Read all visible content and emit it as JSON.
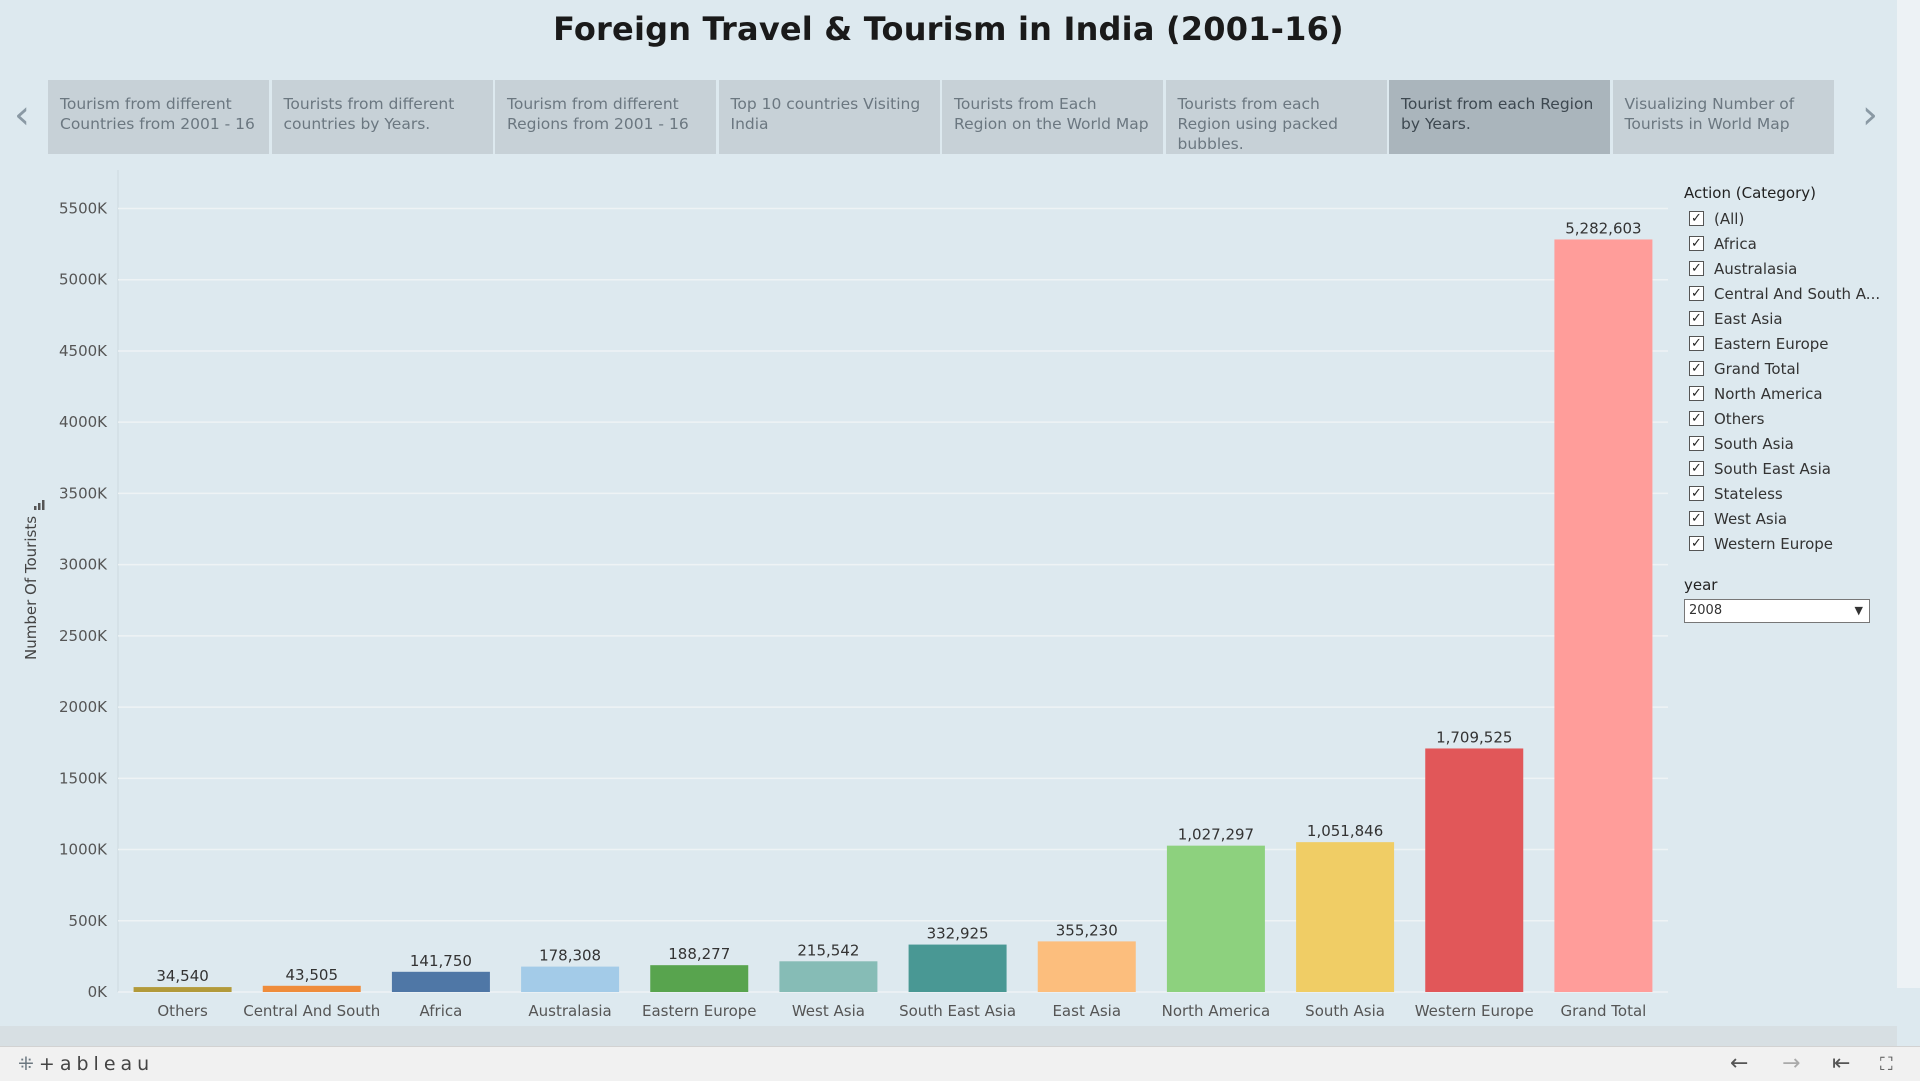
{
  "title": "Foreign Travel & Tourism in India (2001-16)",
  "story_tabs": [
    {
      "label": "Tourism from different Countries from 2001 - 16",
      "active": false
    },
    {
      "label": "Tourists from different countries by Years.",
      "active": false
    },
    {
      "label": "Tourism from different Regions from 2001 - 16",
      "active": false
    },
    {
      "label": "Top 10 countries Visiting India",
      "active": false
    },
    {
      "label": "Tourists from Each Region on the World Map",
      "active": false
    },
    {
      "label": "Tourists from each Region using packed bubbles.",
      "active": false
    },
    {
      "label": "Tourist from each Region by Years.",
      "active": true
    },
    {
      "label": "Visualizing Number of Tourists in World Map",
      "active": false
    }
  ],
  "nav": {
    "prev_icon": "chevron-left-icon",
    "next_icon": "chevron-right-icon"
  },
  "legend": {
    "title": "Action (Category)",
    "items": [
      "(All)",
      "Africa",
      "Australasia",
      "Central And South A...",
      "East Asia",
      "Eastern Europe",
      "Grand Total",
      "North America",
      "Others",
      "South Asia",
      "South East Asia",
      "Stateless",
      "West Asia",
      "Western Europe"
    ],
    "checked": true,
    "check_glyph": "✓"
  },
  "year_filter": {
    "label": "year",
    "value": "2008"
  },
  "footer": {
    "logo": "+ableau"
  },
  "chart_data": {
    "type": "bar",
    "title": "",
    "xlabel": "",
    "ylabel": "Number Of Tourists",
    "ylim": [
      0,
      5700000
    ],
    "yticks": [
      0,
      500000,
      1000000,
      1500000,
      2000000,
      2500000,
      3000000,
      3500000,
      4000000,
      4500000,
      5000000,
      5500000
    ],
    "ytick_labels": [
      "0K",
      "500K",
      "1000K",
      "1500K",
      "2000K",
      "2500K",
      "3000K",
      "3500K",
      "4000K",
      "4500K",
      "5000K",
      "5500K"
    ],
    "grid": true,
    "categories": [
      "Others",
      "Central And South America",
      "Africa",
      "Australasia",
      "Eastern Europe",
      "West Asia",
      "South East Asia",
      "East Asia",
      "North America",
      "South Asia",
      "Western Europe",
      "Grand Total"
    ],
    "category_labels": [
      "Others",
      "Central And South",
      "Africa",
      "Australasia",
      "Eastern Europe",
      "West Asia",
      "South East Asia",
      "East Asia",
      "North America",
      "South Asia",
      "Western Europe",
      "Grand Total"
    ],
    "values": [
      34540,
      43505,
      141750,
      178308,
      188277,
      215542,
      332925,
      355230,
      1027297,
      1051846,
      1709525,
      5282603
    ],
    "value_labels": [
      "34,540",
      "43,505",
      "141,750",
      "178,308",
      "188,277",
      "215,542",
      "332,925",
      "355,230",
      "1,027,297",
      "1,051,846",
      "1,709,525",
      "5,282,603"
    ],
    "colors": [
      "#b29a3a",
      "#ef8c3b",
      "#4f77a6",
      "#a3cbe8",
      "#58a44e",
      "#86bcb6",
      "#499894",
      "#fcbe7d",
      "#8dd17e",
      "#f0cd65",
      "#e15759",
      "#ff9d9a"
    ]
  }
}
